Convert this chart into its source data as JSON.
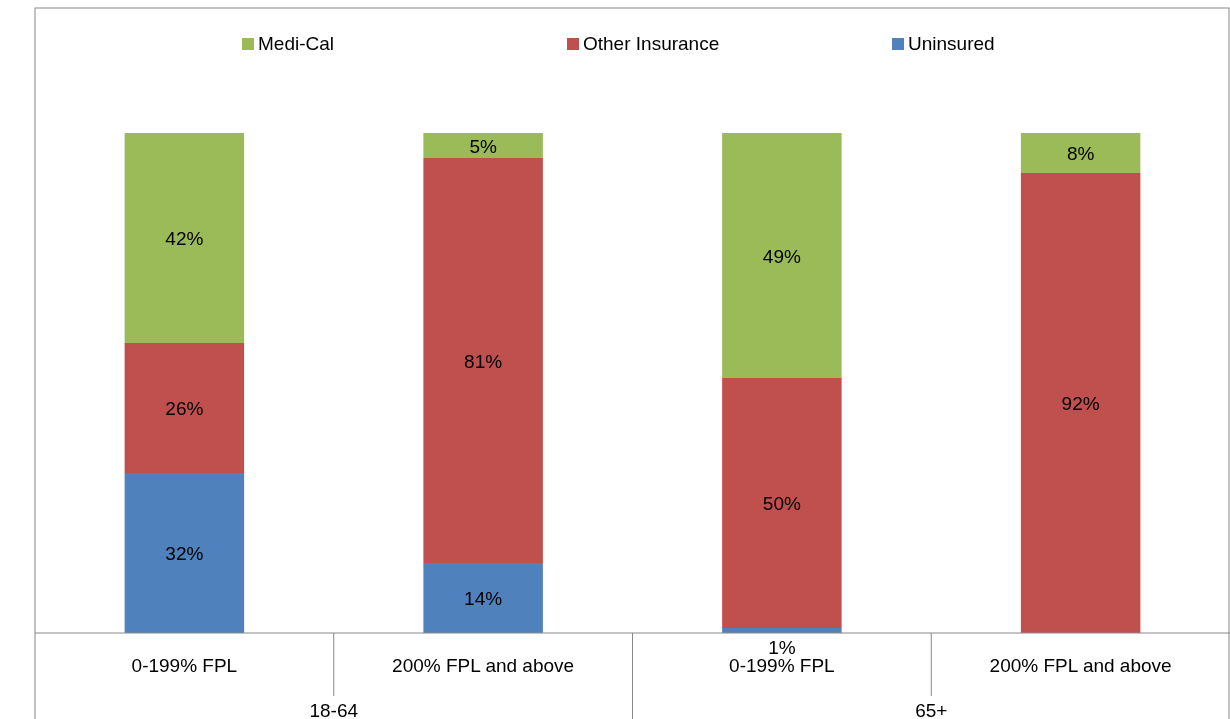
{
  "chart_data": {
    "type": "bar",
    "stacked": true,
    "legend": "top",
    "categories": [
      "0-199% FPL",
      "200% FPL and above",
      "0-199% FPL",
      "200% FPL and above"
    ],
    "annotations": [
      "18-64",
      "65+"
    ],
    "series": [
      {
        "name": "Uninsured",
        "color": "#4f81bd",
        "values": [
          32,
          14,
          1,
          0
        ],
        "value_labels": [
          "32%",
          "14%",
          "1%",
          null
        ]
      },
      {
        "name": "Other Insurance",
        "color": "#c0504d",
        "values": [
          26,
          81,
          50,
          92
        ],
        "value_labels": [
          "26%",
          "81%",
          "50%",
          "92%"
        ]
      },
      {
        "name": "Medi-Cal",
        "color": "#9bbb59",
        "values": [
          42,
          5,
          49,
          8
        ],
        "value_labels": [
          "42%",
          "5%",
          "49%",
          "8%"
        ]
      }
    ]
  }
}
